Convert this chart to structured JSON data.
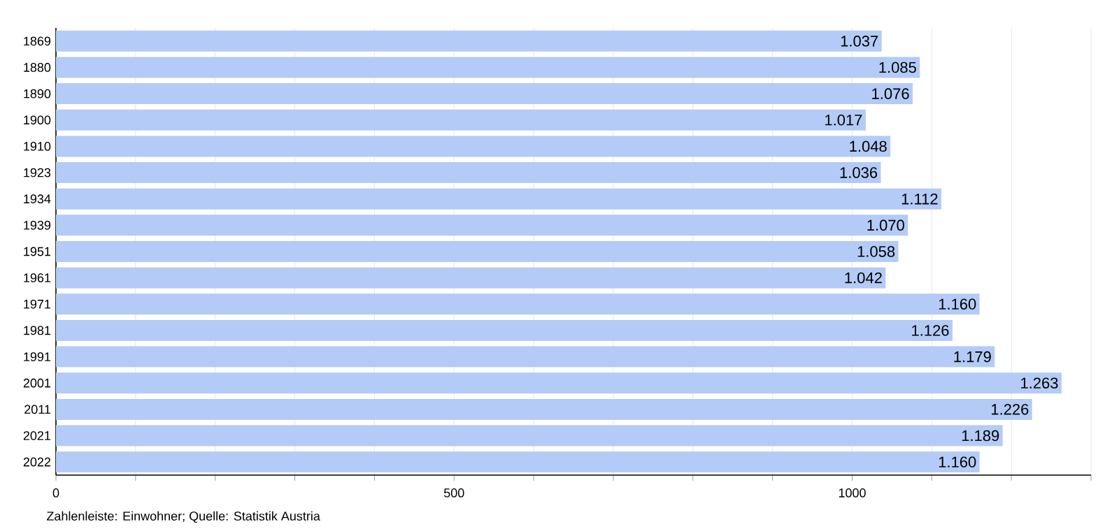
{
  "chart_data": {
    "type": "bar",
    "orientation": "horizontal",
    "categories": [
      "1869",
      "1880",
      "1890",
      "1900",
      "1910",
      "1923",
      "1934",
      "1939",
      "1951",
      "1961",
      "1971",
      "1981",
      "1991",
      "2001",
      "2011",
      "2021",
      "2022"
    ],
    "values": [
      1037,
      1085,
      1076,
      1017,
      1048,
      1036,
      1112,
      1070,
      1058,
      1042,
      1160,
      1126,
      1179,
      1263,
      1226,
      1189,
      1160
    ],
    "value_labels": [
      "1.037",
      "1.085",
      "1.076",
      "1.017",
      "1.048",
      "1.036",
      "1.112",
      "1.070",
      "1.058",
      "1.042",
      "1.160",
      "1.126",
      "1.179",
      "1.263",
      "1.226",
      "1.189",
      "1.160"
    ],
    "color": "#b3cbf6",
    "xlim": [
      0,
      1300
    ],
    "xticks": [
      0,
      {
        "value": 100,
        "label": null
      },
      {
        "value": 200,
        "label": null
      },
      {
        "value": 300,
        "label": null
      },
      {
        "value": 400,
        "label": null
      },
      500,
      {
        "value": 600,
        "label": null
      },
      {
        "value": 700,
        "label": null
      },
      {
        "value": 800,
        "label": null
      },
      {
        "value": 900,
        "label": null
      },
      1000,
      {
        "value": 1100,
        "label": null
      },
      {
        "value": 1200,
        "label": null
      },
      {
        "value": 1300,
        "label": null
      }
    ],
    "grid": "x",
    "annotations": [
      "Zahlenleiste: Einwohner; Quelle: Statistik Austria"
    ]
  }
}
